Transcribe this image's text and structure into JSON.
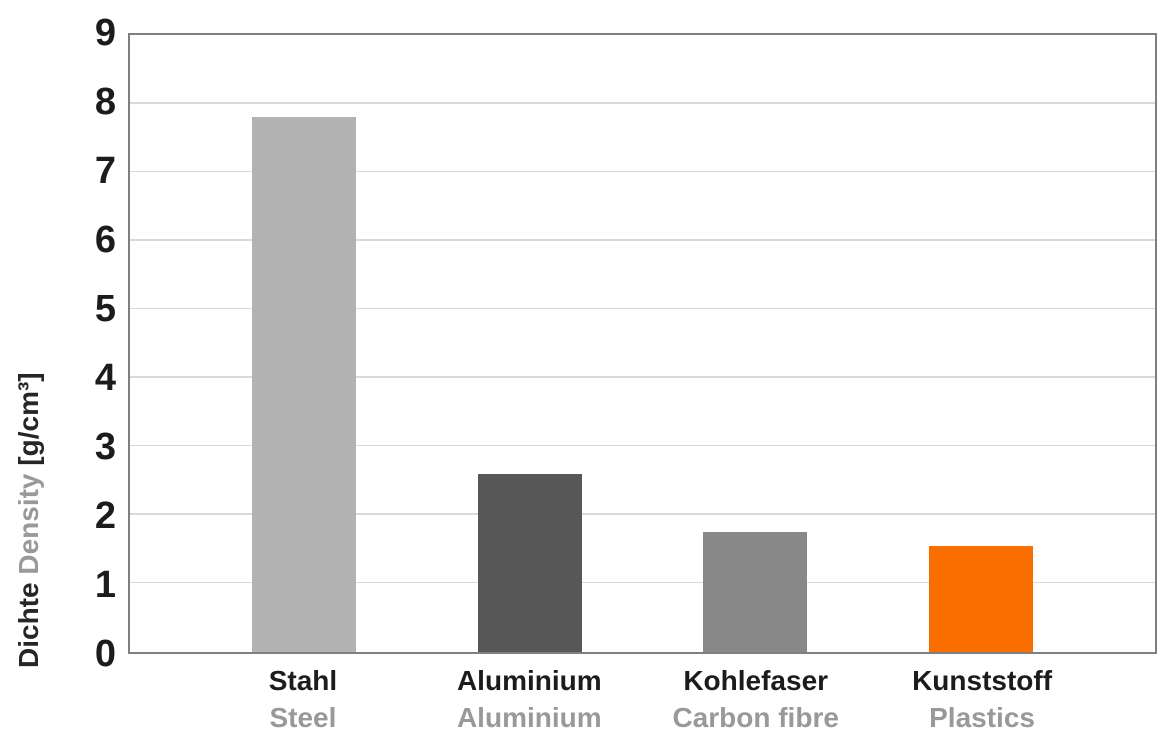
{
  "chart_data": {
    "type": "bar",
    "title": "",
    "categories_de": [
      "Stahl",
      "Aluminium",
      "Kohlefaser",
      "Kunststoff"
    ],
    "categories_en": [
      "Steel",
      "Aluminium",
      "Carbon fibre",
      "Plastics"
    ],
    "values": [
      7.8,
      2.6,
      1.75,
      1.55
    ],
    "bar_colors": [
      "#b3b3b3",
      "#575757",
      "#888888",
      "#fa6e00"
    ],
    "ylabel_de": "Dichte",
    "ylabel_en": "Density",
    "ylabel_unit": "[g/cm³]",
    "ylim": [
      0,
      9
    ],
    "yticks": [
      0,
      1,
      2,
      3,
      4,
      5,
      6,
      7,
      8,
      9
    ],
    "grid": true,
    "legend": false,
    "xlabel": "",
    "axis_border_color": "#7f7f7f",
    "gridline_color": "#d9d9d9",
    "tick_text_color": "#1c1c1c",
    "secondary_text_color": "#999999"
  }
}
